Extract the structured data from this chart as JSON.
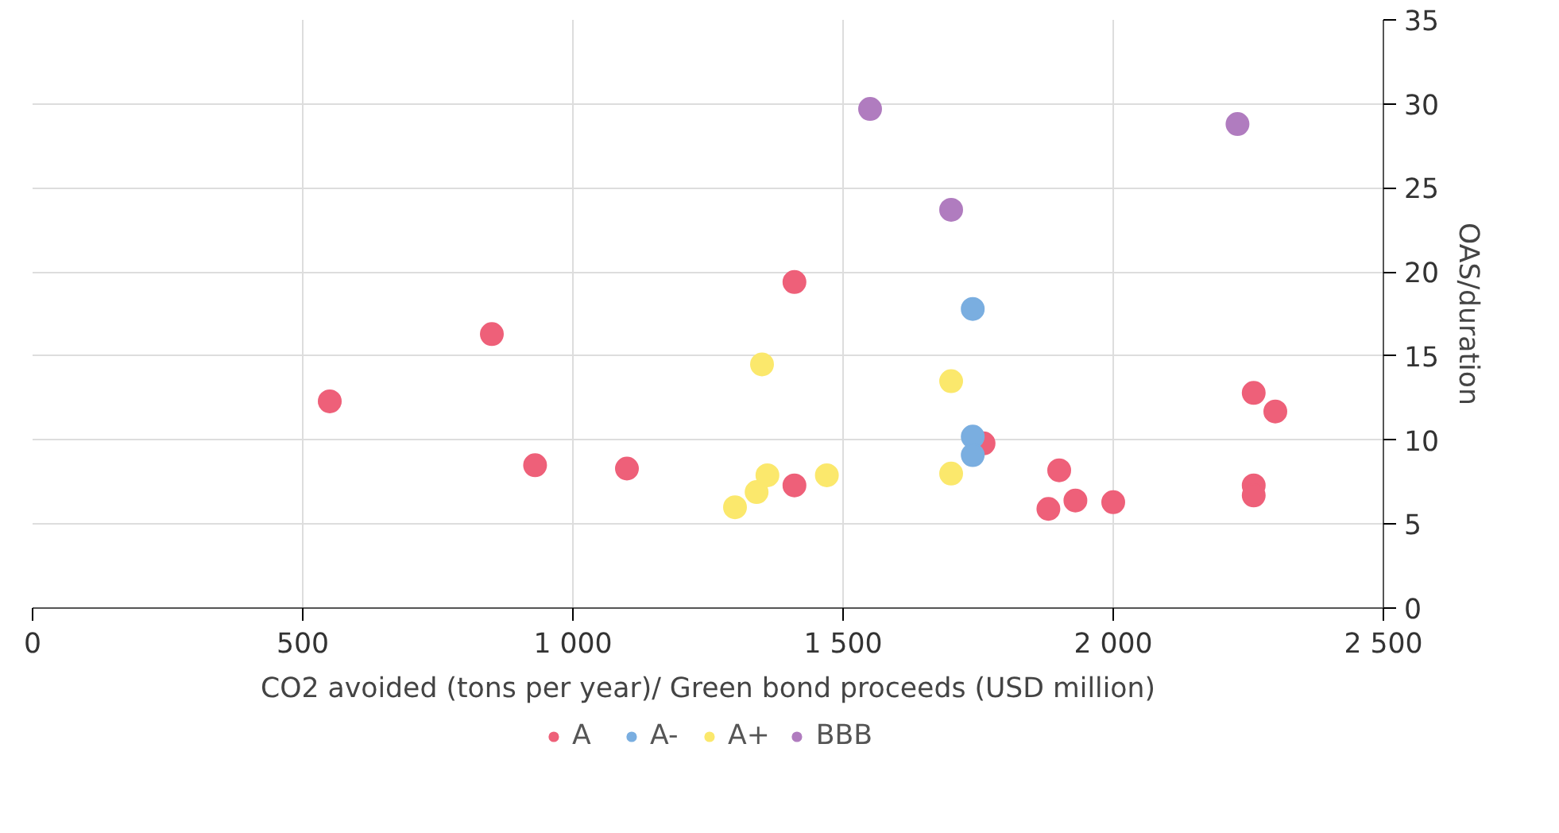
{
  "chart_data": {
    "type": "scatter",
    "xlabel": "CO2 avoided (tons per year)/ Green bond proceeds (USD million)",
    "ylabel": "OAS/duration",
    "xlim": [
      0,
      2500
    ],
    "xticks": [
      0,
      500,
      {
        "value": 1000,
        "label": "1 000"
      },
      {
        "value": 1500,
        "label": "1 500"
      },
      {
        "value": 2000,
        "label": "2 000"
      },
      {
        "value": 2500,
        "label": "2 500"
      }
    ],
    "ylim": [
      0,
      35
    ],
    "yticks": [
      0,
      5,
      10,
      15,
      20,
      25,
      30,
      35
    ],
    "grid": true,
    "legend": "bottom",
    "marker": "circle",
    "series": [
      {
        "name": "A",
        "color": "#ee6079",
        "x": [
          550,
          850,
          930,
          1100,
          1410,
          1410,
          1760,
          1900,
          1880,
          1930,
          2000,
          2260,
          2300,
          2260,
          2260
        ],
        "values": [
          12.3,
          16.3,
          8.5,
          8.3,
          19.4,
          7.3,
          9.8,
          8.2,
          5.9,
          6.4,
          6.3,
          12.8,
          11.7,
          7.3,
          6.7
        ]
      },
      {
        "name": "A-",
        "color": "#7aaee0",
        "x": [
          1740,
          1740,
          1740
        ],
        "values": [
          17.8,
          10.2,
          9.1
        ]
      },
      {
        "name": "A+",
        "color": "#fbe86c",
        "x": [
          1350,
          1700,
          1300,
          1340,
          1360,
          1470,
          1700
        ],
        "values": [
          14.5,
          13.5,
          6.0,
          6.9,
          7.9,
          7.9,
          8.0
        ]
      },
      {
        "name": "BBB",
        "color": "#b07cbf",
        "x": [
          1550,
          1700,
          2230
        ],
        "values": [
          29.7,
          23.7,
          28.8
        ]
      }
    ]
  }
}
